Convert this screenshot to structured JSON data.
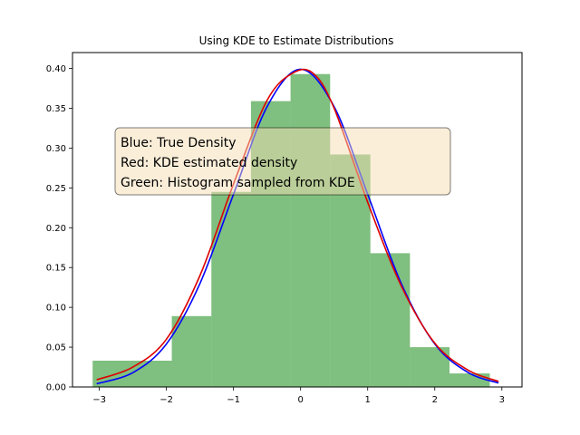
{
  "chart_data": {
    "type": "bar",
    "title": "Using KDE to Estimate Distributions",
    "xlabel": "",
    "ylabel": "",
    "xlim": [
      -3.4,
      3.3
    ],
    "ylim": [
      0,
      0.42
    ],
    "xticks": [
      -3,
      -2,
      -1,
      0,
      1,
      2,
      3
    ],
    "xtick_labels": [
      "−3",
      "−2",
      "−1",
      "0",
      "1",
      "2",
      "3"
    ],
    "yticks": [
      0,
      0.05,
      0.1,
      0.15,
      0.2,
      0.25,
      0.3,
      0.35,
      0.4
    ],
    "ytick_labels": [
      "0.00",
      "0.05",
      "0.10",
      "0.15",
      "0.20",
      "0.25",
      "0.30",
      "0.35",
      "0.40"
    ],
    "histogram": {
      "color": "#008000",
      "opacity": 0.5,
      "bins": [
        {
          "x0": -3.1,
          "x1": -1.92,
          "value": 0.033
        },
        {
          "x0": -1.92,
          "x1": -1.33,
          "value": 0.089
        },
        {
          "x0": -1.33,
          "x1": -0.74,
          "value": 0.245
        },
        {
          "x0": -0.74,
          "x1": -0.15,
          "value": 0.359
        },
        {
          "x0": -0.15,
          "x1": 0.44,
          "value": 0.393
        },
        {
          "x0": 0.44,
          "x1": 1.04,
          "value": 0.292
        },
        {
          "x0": 1.04,
          "x1": 1.63,
          "value": 0.168
        },
        {
          "x0": 1.63,
          "x1": 2.22,
          "value": 0.05
        },
        {
          "x0": 2.22,
          "x1": 2.82,
          "value": 0.017
        }
      ]
    },
    "series": [
      {
        "kind": "true-density",
        "color": "#0000ff",
        "x": [
          -3.04,
          -2.5,
          -2.0,
          -1.5,
          -1.0,
          -0.5,
          0.0,
          0.5,
          1.0,
          1.5,
          2.0,
          2.5,
          2.95
        ],
        "y": [
          0.004,
          0.018,
          0.054,
          0.13,
          0.242,
          0.352,
          0.399,
          0.352,
          0.242,
          0.13,
          0.054,
          0.018,
          0.005
        ]
      },
      {
        "kind": "kde-estimate",
        "color": "#dd0000",
        "x": [
          -3.04,
          -2.5,
          -2.0,
          -1.5,
          -1.0,
          -0.5,
          -0.1,
          0.2,
          0.5,
          1.0,
          1.5,
          2.0,
          2.5,
          2.95
        ],
        "y": [
          0.009,
          0.025,
          0.06,
          0.14,
          0.255,
          0.36,
          0.395,
          0.393,
          0.35,
          0.232,
          0.127,
          0.055,
          0.021,
          0.007
        ]
      }
    ],
    "annotation": {
      "lines": [
        "Blue: True Density",
        "Red: KDE estimated density",
        "Green: Histogram sampled from KDE"
      ],
      "box_fill": "#f5deb3",
      "box_opacity": 0.5
    }
  }
}
